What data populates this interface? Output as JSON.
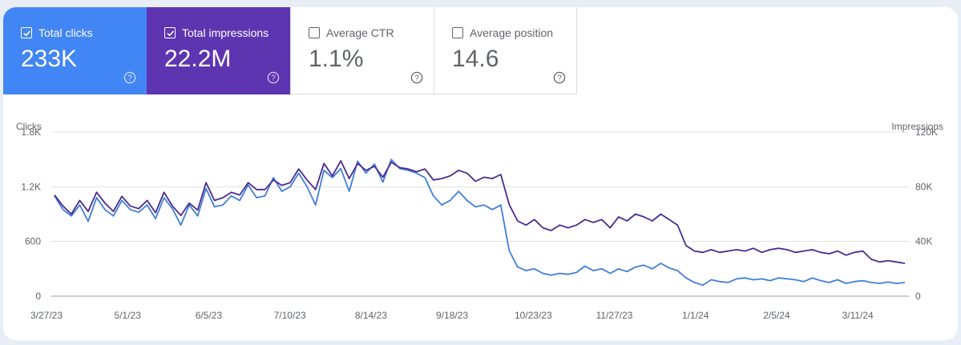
{
  "metrics": [
    {
      "label": "Total clicks",
      "value": "233K",
      "checked": true
    },
    {
      "label": "Total impressions",
      "value": "22.2M",
      "checked": true
    },
    {
      "label": "Average CTR",
      "value": "1.1%",
      "checked": false
    },
    {
      "label": "Average position",
      "value": "14.6",
      "checked": false
    }
  ],
  "colors": {
    "clicks": "#4285f4",
    "impressions": "#5e35b1",
    "clicks_line": "#3f7fd9",
    "impressions_line": "#4a2a91",
    "grid": "#e0e0e0"
  },
  "chart_data": {
    "type": "line",
    "ylabel": "Clicks",
    "y2label": "Impressions",
    "ylim": [
      0,
      1800
    ],
    "y2lim": [
      0,
      120000
    ],
    "yticks": [
      "0",
      "600",
      "1.2K",
      "1.8K"
    ],
    "y2ticks": [
      "0",
      "40K",
      "80K",
      "120K"
    ],
    "xticks": [
      "3/27/23",
      "5/1/23",
      "6/5/23",
      "7/10/23",
      "8/14/23",
      "9/18/23",
      "10/23/23",
      "11/27/23",
      "1/1/24",
      "2/5/24",
      "3/11/24"
    ],
    "x_start": "2023-03-27",
    "x_end": "2024-03-31",
    "grid": true,
    "series": [
      {
        "name": "Clicks",
        "axis": "left",
        "values": [
          1100,
          950,
          880,
          1000,
          820,
          1080,
          950,
          880,
          1050,
          950,
          920,
          1000,
          850,
          1080,
          960,
          780,
          1000,
          880,
          1180,
          980,
          1000,
          1100,
          1050,
          1220,
          1080,
          1100,
          1300,
          1150,
          1200,
          1350,
          1200,
          1000,
          1380,
          1300,
          1400,
          1150,
          1480,
          1350,
          1450,
          1250,
          1500,
          1400,
          1380,
          1350,
          1300,
          1100,
          1000,
          1050,
          1150,
          1050,
          980,
          1000,
          950,
          1000,
          500,
          320,
          280,
          300,
          250,
          230,
          250,
          240,
          260,
          330,
          280,
          300,
          250,
          300,
          270,
          320,
          340,
          300,
          360,
          310,
          280,
          200,
          150,
          120,
          180,
          160,
          150,
          190,
          200,
          180,
          190,
          170,
          200,
          190,
          180,
          160,
          200,
          170,
          150,
          180,
          140,
          160,
          170,
          150,
          140,
          155,
          140,
          150
        ]
      },
      {
        "name": "Impressions",
        "axis": "right",
        "values": [
          74000,
          66000,
          60000,
          70000,
          62000,
          76000,
          68000,
          62000,
          73000,
          66000,
          64000,
          70000,
          61000,
          76000,
          66000,
          59000,
          68000,
          63000,
          83000,
          70000,
          72000,
          76000,
          74000,
          83000,
          78000,
          78000,
          85000,
          81000,
          83000,
          93000,
          85000,
          78000,
          97000,
          88000,
          99000,
          86000,
          97000,
          92000,
          95000,
          87000,
          98000,
          94000,
          93000,
          91000,
          93000,
          85000,
          86000,
          88000,
          92000,
          90000,
          84000,
          87000,
          86000,
          89000,
          67000,
          55000,
          52000,
          56000,
          50000,
          48000,
          52000,
          50000,
          52000,
          56000,
          54000,
          56000,
          50000,
          58000,
          55000,
          60000,
          58000,
          55000,
          60000,
          56000,
          52000,
          37000,
          33000,
          32000,
          34000,
          32000,
          33000,
          34000,
          33000,
          35000,
          32000,
          34000,
          35000,
          34000,
          32000,
          33000,
          34000,
          32000,
          31000,
          33000,
          30000,
          32000,
          33000,
          27000,
          25000,
          26000,
          25000,
          24000
        ]
      }
    ]
  }
}
